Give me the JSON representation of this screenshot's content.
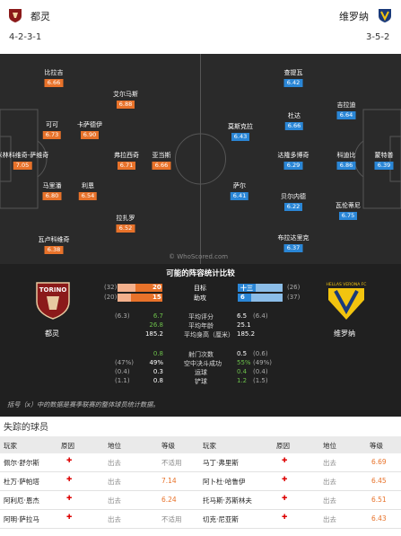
{
  "home": {
    "name": "都灵",
    "formation": "4-2-3-1",
    "color": "#8b1a1a"
  },
  "away": {
    "name": "维罗纳",
    "formation": "3-5-2",
    "color": "#f2c40f"
  },
  "home_players": [
    {
      "name": "比拉吉",
      "rating": "6.66"
    },
    {
      "name": "艾尔马斯",
      "rating": "6.88"
    },
    {
      "name": "可可",
      "rating": "6.73"
    },
    {
      "name": "卡萨德伊",
      "rating": "6.90"
    },
    {
      "name": "米林科维奇-萨维奇",
      "rating": "7.05"
    },
    {
      "name": "弗拉西奇",
      "rating": "6.71"
    },
    {
      "name": "亚当斯",
      "rating": "6.66"
    },
    {
      "name": "马里潘",
      "rating": "6.80"
    },
    {
      "name": "利恩",
      "rating": "6.54"
    },
    {
      "name": "拉扎罗",
      "rating": "6.52"
    },
    {
      "name": "瓦卢科维奇",
      "rating": "6.38"
    }
  ],
  "away_players": [
    {
      "name": "查提瓦",
      "rating": "6.42"
    },
    {
      "name": "吉拉迪",
      "rating": "6.64"
    },
    {
      "name": "杜达",
      "rating": "6.66"
    },
    {
      "name": "莫斯克拉",
      "rating": "6.43"
    },
    {
      "name": "达隆多博奇",
      "rating": "6.29"
    },
    {
      "name": "科迪比",
      "rating": "6.86"
    },
    {
      "name": "蒙特普",
      "rating": "6.39"
    },
    {
      "name": "萨尔",
      "rating": "6.41"
    },
    {
      "name": "贝尔内德",
      "rating": "6.22"
    },
    {
      "name": "瓦伦蒂尼",
      "rating": "6.75"
    },
    {
      "name": "布拉达里克",
      "rating": "6.37"
    }
  ],
  "watermark": "© WhoScored.com",
  "summary": {
    "title": "可能的阵容统计比较",
    "home_label": "都灵",
    "away_label": "维罗纳",
    "crest_text": "TORINO",
    "away_crest_text": "HELLAS VERONA FC",
    "goals": {
      "label": "目标",
      "home_rank": "(32)",
      "home": "20",
      "away": "十三",
      "away_rank": "(26)",
      "home_frac": 0.6,
      "away_frac": 0.4
    },
    "assists": {
      "label": "助攻",
      "home_rank": "(20)",
      "home": "15",
      "away": "6",
      "away_rank": "(37)",
      "home_frac": 0.7,
      "away_frac": 0.3
    },
    "rows": [
      {
        "label": "平均评分",
        "hr": "(6.3)",
        "h": "6.7",
        "a": "6.5",
        "ar": "(6.4)",
        "hg": true,
        "ag": false
      },
      {
        "label": "平均年龄",
        "hr": "",
        "h": "26.8",
        "a": "25.1",
        "ar": "",
        "hg": true,
        "ag": false
      },
      {
        "label": "平均身高（厘米）",
        "hr": "",
        "h": "185.2",
        "a": "185.2",
        "ar": "",
        "hg": false,
        "ag": false
      },
      {
        "label": "射门次数",
        "hr": "",
        "h": "0.8",
        "a": "0.5",
        "ar": "(0.6)",
        "hg": true,
        "ag": false
      },
      {
        "label": "空中决斗成功",
        "hr": "(47%)",
        "h": "49%",
        "a": "55%",
        "ar": "(49%)",
        "hg": false,
        "ag": true
      },
      {
        "label": "运球",
        "hr": "(0.4)",
        "h": "0.3",
        "a": "0.4",
        "ar": "(0.4)",
        "hg": false,
        "ag": true
      },
      {
        "label": "铲球",
        "hr": "(1.1)",
        "h": "0.8",
        "a": "1.2",
        "ar": "(1.5)",
        "hg": false,
        "ag": true
      }
    ],
    "note": "括号（x）中的数据是赛季联赛的整体球员统计数据。"
  },
  "missing": {
    "title": "失踪的球员",
    "headers": [
      "玩家",
      "原因",
      "地位",
      "等级",
      "玩家",
      "原因",
      "地位",
      "等级"
    ],
    "rows": [
      {
        "p1": "佩尔·舒尔斯",
        "s1": "出去",
        "g1": "不适用",
        "p2": "马丁·弗里斯",
        "s2": "出去",
        "g2": "6.69"
      },
      {
        "p1": "杜万·萨帕塔",
        "s1": "出去",
        "g1": "7.14",
        "p2": "阿卜杜·哈鲁伊",
        "s2": "出去",
        "g2": "6.45"
      },
      {
        "p1": "阿利厄·恩杰",
        "s1": "出去",
        "g1": "6.24",
        "p2": "托马斯·苏斯林夫",
        "s2": "出去",
        "g2": "6.51"
      },
      {
        "p1": "阿明·萨拉马",
        "s1": "出去",
        "g1": "不适用",
        "p2": "切克·尼亚斯",
        "s2": "出去",
        "g2": "6.43"
      }
    ]
  }
}
